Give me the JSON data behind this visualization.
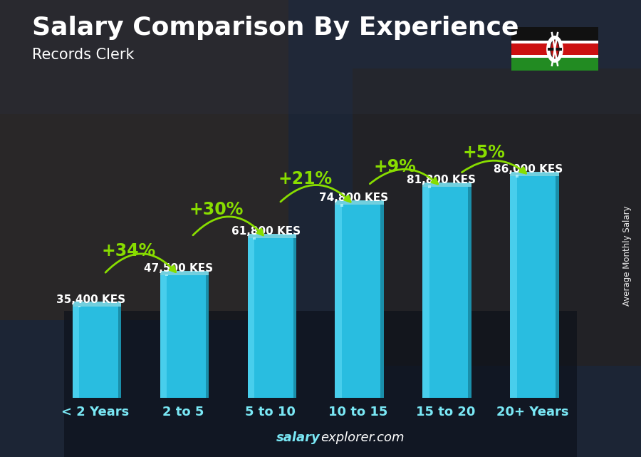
{
  "title": "Salary Comparison By Experience",
  "subtitle": "Records Clerk",
  "watermark_text": "Average Monthly Salary",
  "categories": [
    "< 2 Years",
    "2 to 5",
    "5 to 10",
    "10 to 15",
    "15 to 20",
    "20+ Years"
  ],
  "values": [
    35400,
    47500,
    61800,
    74800,
    81800,
    86000
  ],
  "labels": [
    "35,400 KES",
    "47,500 KES",
    "61,800 KES",
    "74,800 KES",
    "81,800 KES",
    "86,000 KES"
  ],
  "pct_labels": [
    "+34%",
    "+30%",
    "+21%",
    "+9%",
    "+5%"
  ],
  "bar_face_color": "#29bde0",
  "bar_light_color": "#5ddaf5",
  "bar_side_color": "#1a8faa",
  "bar_top_color": "#80eeff",
  "bg_color": "#1a2535",
  "text_white": "#ffffff",
  "text_cyan": "#7ae8f5",
  "green_color": "#88dd00",
  "footer_salary_color": "#7ae8f5",
  "footer_rest_color": "#ffffff",
  "ylim_max": 110000,
  "bar_width": 0.52,
  "label_fontsize": 11,
  "pct_fontsize": 17,
  "title_fontsize": 26,
  "subtitle_fontsize": 15,
  "xtick_fontsize": 13
}
